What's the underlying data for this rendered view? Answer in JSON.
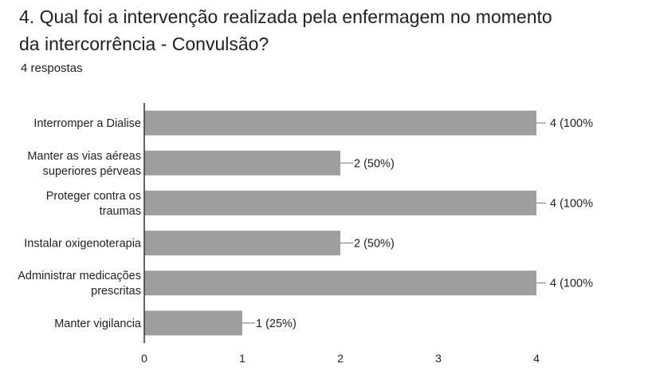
{
  "question": {
    "title_line1": "4. Qual foi a intervenção realizada pela enfermagem no momento",
    "title_line2": "da intercorrência - Convulsão?",
    "response_count": "4 respostas"
  },
  "chart_data": {
    "type": "bar",
    "orientation": "horizontal",
    "categories": [
      [
        "Interromper a Dialise"
      ],
      [
        "Manter as vias aéreas",
        "superiores pérveas"
      ],
      [
        "Proteger contra os",
        "traumas"
      ],
      [
        "Instalar oxigenoterapia"
      ],
      [
        "Administrar medicações",
        "prescritas"
      ],
      [
        "Manter vigilancia"
      ]
    ],
    "values": [
      4,
      2,
      4,
      2,
      4,
      1
    ],
    "data_labels": [
      "4 (100%",
      "2 (50%)",
      "4 (100%",
      "2 (50%)",
      "4 (100%",
      "1 (25%)"
    ],
    "xlim": [
      0,
      4
    ],
    "xticks": [
      "0",
      "1",
      "2",
      "3",
      "4"
    ],
    "grid": false,
    "bar_color": "#9e9e9e"
  }
}
